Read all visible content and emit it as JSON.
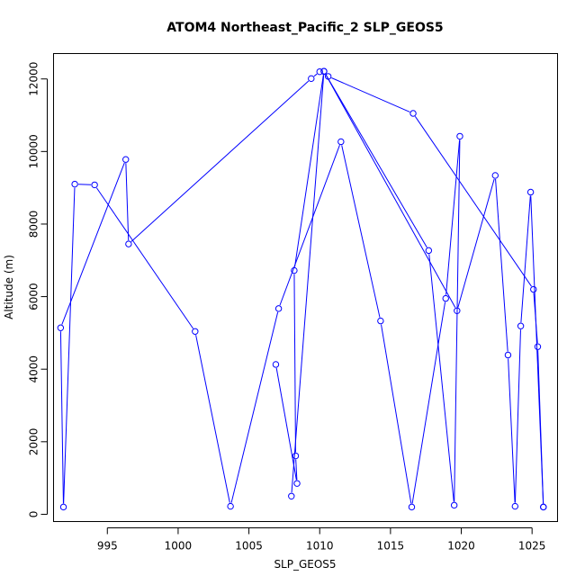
{
  "chart_data": {
    "type": "line",
    "title": "ATOM4 Northeast_Pacific_2 SLP_GEOS5",
    "xlabel": "SLP_GEOS5",
    "ylabel": "Altitude (m)",
    "xlim": [
      991.2,
      1026.8
    ],
    "ylim": [
      -200,
      12700
    ],
    "xticks": [
      995,
      1000,
      1005,
      1010,
      1015,
      1020,
      1025
    ],
    "yticks": [
      0,
      2000,
      4000,
      6000,
      8000,
      10000,
      12000
    ],
    "grid": false,
    "legend": "none",
    "series": [
      {
        "color": "#0000ff",
        "marker": "open-circle",
        "x": [
          1025.8,
          1025.4,
          1025.1,
          1016.6,
          1010.6,
          1010.0,
          1009.4,
          996.5,
          996.3,
          991.7,
          991.9,
          992.7,
          994.1,
          1001.2,
          1003.7,
          1007.1,
          1011.5,
          1014.3,
          1016.5,
          1018.9,
          1019.9,
          1019.5,
          1017.7,
          1010.3,
          1008.2,
          1008.3,
          1008.4,
          1006.9
        ],
        "y": [
          200,
          4620,
          6200,
          11050,
          12070,
          12200,
          12010,
          7450,
          9780,
          5140,
          200,
          9100,
          9080,
          5040,
          220,
          5670,
          10270,
          5330,
          200,
          5950,
          10420,
          250,
          7270,
          12210,
          6720,
          1610,
          850,
          4130
        ]
      },
      {
        "color": "#0000ff",
        "marker": "open-circle",
        "x": [
          1008.0,
          1010.3,
          1019.7,
          1022.4,
          1023.3,
          1023.8,
          1024.2,
          1024.9,
          1025.8
        ],
        "y": [
          500,
          12210,
          5610,
          9340,
          4390,
          220,
          5190,
          8880,
          200
        ]
      }
    ]
  }
}
